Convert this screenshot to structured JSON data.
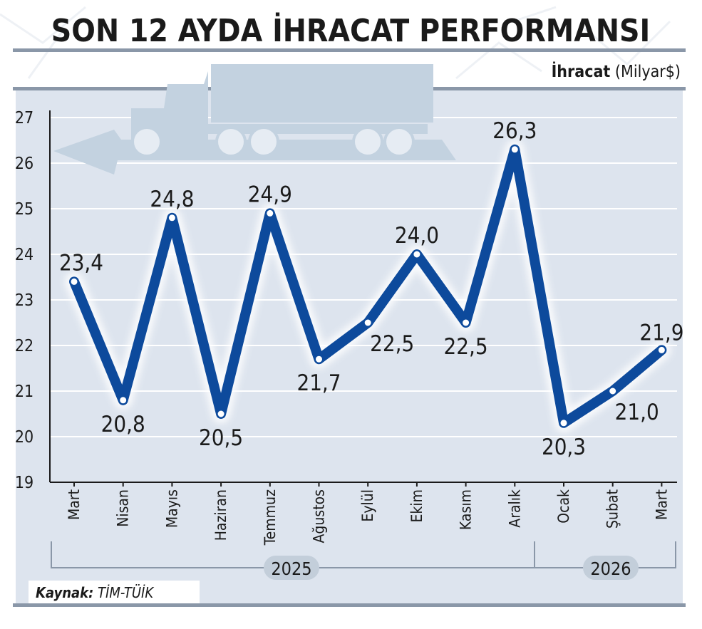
{
  "title": "SON 12 AYDA İHRACAT PERFORMANSI",
  "unit_bold": "İhracat",
  "unit_rest": " (Milyar$)",
  "source_label": "Kaynak:",
  "source_value": " TİM-TÜİK",
  "year_groups": [
    {
      "label": "2025"
    },
    {
      "label": "2026"
    }
  ],
  "colors": {
    "line": "#0d4a9c",
    "panel": "#dde4ee",
    "grid": "#ffffff",
    "rule": "#8a97a8",
    "truck": "#c3d2e0",
    "year_badge": "#c3ceda",
    "text": "#1a1a1a"
  },
  "chart_data": {
    "type": "line",
    "title": "SON 12 AYDA İHRACAT PERFORMANSI",
    "ylabel": "İhracat (Milyar$)",
    "ylim": [
      19,
      27
    ],
    "yticks": [
      19,
      20,
      21,
      22,
      23,
      24,
      25,
      26,
      27
    ],
    "grid": true,
    "categories": [
      "Mart",
      "Nisan",
      "Mayıs",
      "Haziran",
      "Temmuz",
      "Ağustos",
      "Eylül",
      "Ekim",
      "Kasım",
      "Aralık",
      "Ocak",
      "Şubat",
      "Mart"
    ],
    "values": [
      23.4,
      20.8,
      24.8,
      20.5,
      24.9,
      21.7,
      22.5,
      24.0,
      22.5,
      26.3,
      20.3,
      21.0,
      21.9
    ],
    "value_labels": [
      "23,4",
      "20,8",
      "24,8",
      "20,5",
      "24,9",
      "21,7",
      "22,5",
      "24,0",
      "22,5",
      "26,3",
      "20,3",
      "21,0",
      "21,9"
    ]
  }
}
